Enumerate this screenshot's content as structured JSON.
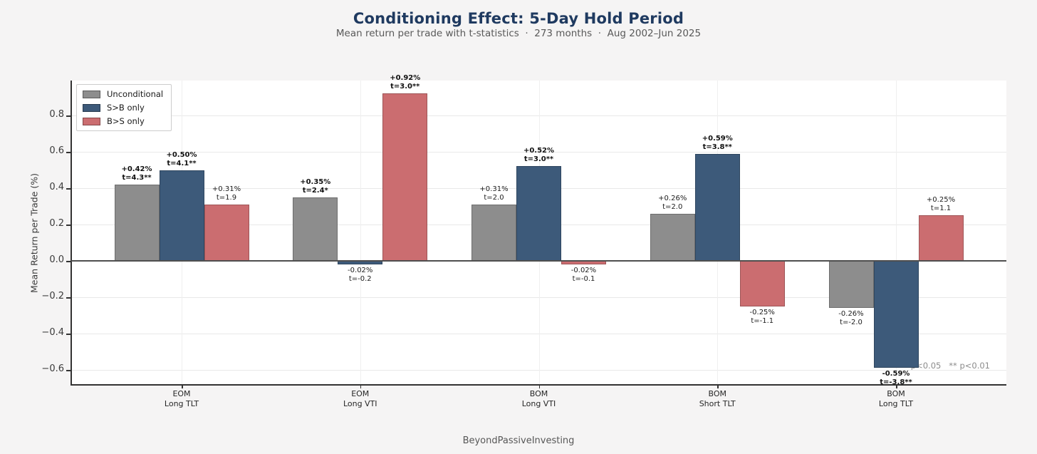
{
  "header": {
    "title": "Conditioning Effect: 5-Day Hold Period",
    "subtitle": "Mean return per trade with t-statistics  ·  273 months  ·  Aug 2002–Jun 2025"
  },
  "footer": {
    "brand": "BeyondPassiveInvesting"
  },
  "chart_data": {
    "type": "bar",
    "title": "Conditioning Effect: 5-Day Hold Period",
    "subtitle": "Mean return per trade with t-statistics · 273 months · Aug 2002–Jun 2025",
    "ylabel": "Mean Return per Trade (%)",
    "ylim": [
      -0.68,
      1.0
    ],
    "yticks": [
      0.8,
      0.6,
      0.4,
      0.2,
      0.0,
      -0.2,
      -0.4,
      -0.6
    ],
    "grid": true,
    "legend_position": "upper left",
    "note": "* p<0.05   ** p<0.01",
    "categories": [
      [
        "EOM",
        "Long TLT"
      ],
      [
        "EOM",
        "Long VTI"
      ],
      [
        "BOM",
        "Long VTI"
      ],
      [
        "BOM",
        "Short TLT"
      ],
      [
        "BOM",
        "Long TLT"
      ]
    ],
    "series": [
      {
        "name": "Unconditional",
        "color": "#8d8d8d",
        "values": [
          0.42,
          0.35,
          0.31,
          0.26,
          -0.26
        ],
        "annotations": [
          {
            "pct": "+0.42%",
            "t": "t=4.3**",
            "sig": true
          },
          {
            "pct": "+0.35%",
            "t": "t=2.4*",
            "sig": true
          },
          {
            "pct": "+0.31%",
            "t": "t=2.0",
            "sig": false
          },
          {
            "pct": "+0.26%",
            "t": "t=2.0",
            "sig": false
          },
          {
            "pct": "-0.26%",
            "t": "t=-2.0",
            "sig": false
          }
        ]
      },
      {
        "name": "S>B only",
        "color": "#3d5a7a",
        "values": [
          0.5,
          -0.02,
          0.52,
          0.59,
          -0.59
        ],
        "annotations": [
          {
            "pct": "+0.50%",
            "t": "t=4.1**",
            "sig": true
          },
          {
            "pct": "-0.02%",
            "t": "t=-0.2",
            "sig": false
          },
          {
            "pct": "+0.52%",
            "t": "t=3.0**",
            "sig": true
          },
          {
            "pct": "+0.59%",
            "t": "t=3.8**",
            "sig": true
          },
          {
            "pct": "-0.59%",
            "t": "t=-3.8**",
            "sig": true
          }
        ]
      },
      {
        "name": "B>S only",
        "color": "#cb6d70",
        "values": [
          0.31,
          0.92,
          -0.02,
          -0.25,
          0.25
        ],
        "annotations": [
          {
            "pct": "+0.31%",
            "t": "t=1.9",
            "sig": false
          },
          {
            "pct": "+0.92%",
            "t": "t=3.0**",
            "sig": true
          },
          {
            "pct": "-0.02%",
            "t": "t=-0.1",
            "sig": false
          },
          {
            "pct": "-0.25%",
            "t": "t=-1.1",
            "sig": false
          },
          {
            "pct": "+0.25%",
            "t": "t=1.1",
            "sig": false
          }
        ]
      }
    ]
  }
}
